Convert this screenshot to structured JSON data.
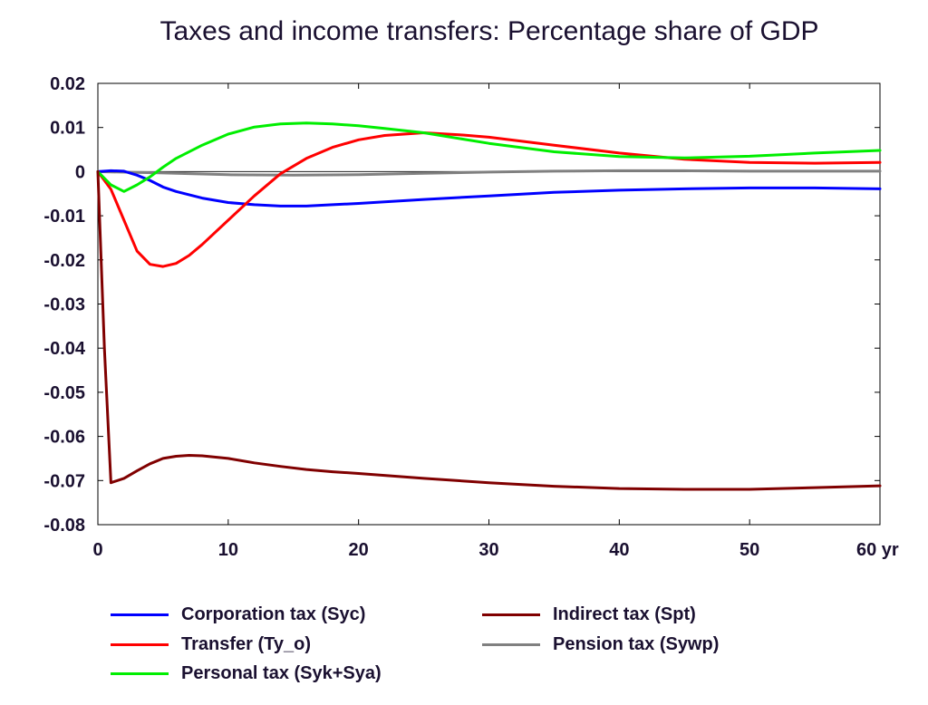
{
  "chart_data": {
    "type": "line",
    "title": "Taxes and income transfers: Percentage share of GDP",
    "xlabel": "",
    "ylabel": "",
    "x_unit_label": "yr",
    "xlim": [
      0,
      60
    ],
    "ylim": [
      -0.08,
      0.02
    ],
    "x_ticks": [
      0,
      10,
      20,
      30,
      40,
      50,
      60
    ],
    "x_tick_labels": [
      "0",
      "10",
      "20",
      "30",
      "40",
      "50",
      "60 yr"
    ],
    "y_ticks": [
      0.02,
      0.01,
      0,
      -0.01,
      -0.02,
      -0.03,
      -0.04,
      -0.05,
      -0.06,
      -0.07,
      -0.08
    ],
    "y_tick_labels": [
      "0.02",
      "0.01",
      "0",
      "-0.01",
      "-0.02",
      "-0.03",
      "-0.04",
      "-0.05",
      "-0.06",
      "-0.07",
      "-0.08"
    ],
    "grid": false,
    "legend_placement": "bottom",
    "series": [
      {
        "name": "Corporation tax (Syc)",
        "color": "#0000ff",
        "x": [
          0,
          1,
          2,
          3,
          4,
          5,
          6,
          8,
          10,
          12,
          14,
          16,
          18,
          20,
          25,
          30,
          35,
          40,
          45,
          50,
          55,
          60
        ],
        "y": [
          0,
          0.0002,
          0.0001,
          -0.0008,
          -0.002,
          -0.0035,
          -0.0045,
          -0.006,
          -0.007,
          -0.0075,
          -0.0078,
          -0.0078,
          -0.0075,
          -0.0072,
          -0.0063,
          -0.0055,
          -0.0047,
          -0.0042,
          -0.0039,
          -0.0037,
          -0.0037,
          -0.0039
        ]
      },
      {
        "name": "Transfer (Ty_o)",
        "color": "#ff0000",
        "x": [
          0,
          1,
          2,
          3,
          4,
          5,
          6,
          7,
          8,
          10,
          12,
          14,
          16,
          18,
          20,
          22,
          25,
          28,
          30,
          35,
          40,
          45,
          50,
          55,
          60
        ],
        "y": [
          0,
          -0.004,
          -0.011,
          -0.018,
          -0.021,
          -0.0215,
          -0.0208,
          -0.019,
          -0.0165,
          -0.011,
          -0.0055,
          -0.0005,
          0.003,
          0.0055,
          0.0072,
          0.0082,
          0.0088,
          0.0083,
          0.0078,
          0.006,
          0.0042,
          0.0028,
          0.0021,
          0.0019,
          0.0021
        ]
      },
      {
        "name": "Personal tax (Syk+Sya)",
        "color": "#00ee00",
        "x": [
          0,
          1,
          2,
          3,
          4,
          5,
          6,
          8,
          10,
          12,
          14,
          16,
          18,
          20,
          22,
          25,
          30,
          35,
          40,
          45,
          50,
          55,
          60
        ],
        "y": [
          0,
          -0.003,
          -0.0045,
          -0.003,
          -0.0012,
          0.001,
          0.003,
          0.006,
          0.0085,
          0.0101,
          0.0108,
          0.011,
          0.0108,
          0.0104,
          0.0098,
          0.0088,
          0.0064,
          0.0045,
          0.0034,
          0.0031,
          0.0035,
          0.0042,
          0.0048
        ]
      },
      {
        "name": "Indirect tax (Spt)",
        "color": "#800000",
        "x": [
          0,
          0.5,
          1,
          2,
          3,
          4,
          5,
          6,
          7,
          8,
          10,
          12,
          14,
          16,
          18,
          20,
          25,
          30,
          35,
          40,
          45,
          50,
          55,
          60
        ],
        "y": [
          0,
          -0.04,
          -0.0705,
          -0.0695,
          -0.0678,
          -0.0662,
          -0.065,
          -0.0645,
          -0.0643,
          -0.0644,
          -0.065,
          -0.066,
          -0.0668,
          -0.0675,
          -0.068,
          -0.0684,
          -0.0695,
          -0.0705,
          -0.0713,
          -0.0718,
          -0.072,
          -0.072,
          -0.0716,
          -0.0712
        ]
      },
      {
        "name": "Pension tax (Sywp)",
        "color": "#808080",
        "x": [
          0,
          5,
          10,
          15,
          20,
          25,
          30,
          35,
          40,
          45,
          50,
          55,
          60
        ],
        "y": [
          0,
          -0.0003,
          -0.0007,
          -0.0008,
          -0.0007,
          -0.0004,
          -0.0001,
          0.0001,
          0.0002,
          0.0002,
          0.0001,
          0.0001,
          0.0001
        ]
      }
    ]
  }
}
